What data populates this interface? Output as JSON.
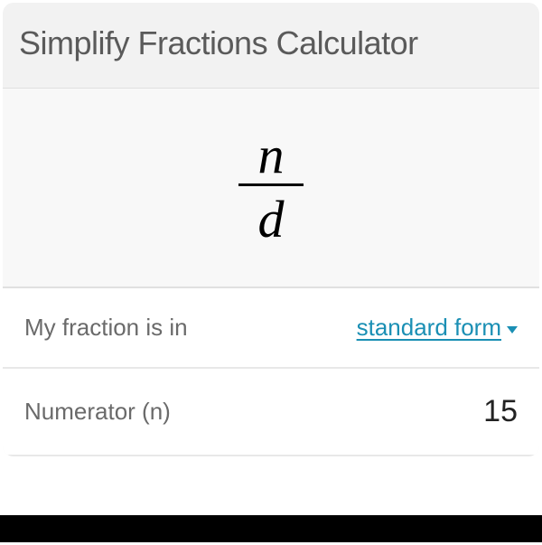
{
  "calculator": {
    "title": "Simplify Fractions Calculator",
    "fraction": {
      "numerator_var": "n",
      "denominator_var": "d"
    },
    "rows": {
      "form_label": "My fraction is in",
      "form_value": "standard form",
      "numerator_label": "Numerator (n)",
      "numerator_value": "15"
    },
    "colors": {
      "title_bg": "#f2f2f2",
      "fraction_bg": "#f8f8f8",
      "row_bg": "#ffffff",
      "title_text": "#5a5a5a",
      "label_text": "#6a6a6a",
      "link_color": "#1a8fb4",
      "value_text": "#222222",
      "fraction_text": "#000000",
      "border": "#e0e0e0"
    }
  }
}
